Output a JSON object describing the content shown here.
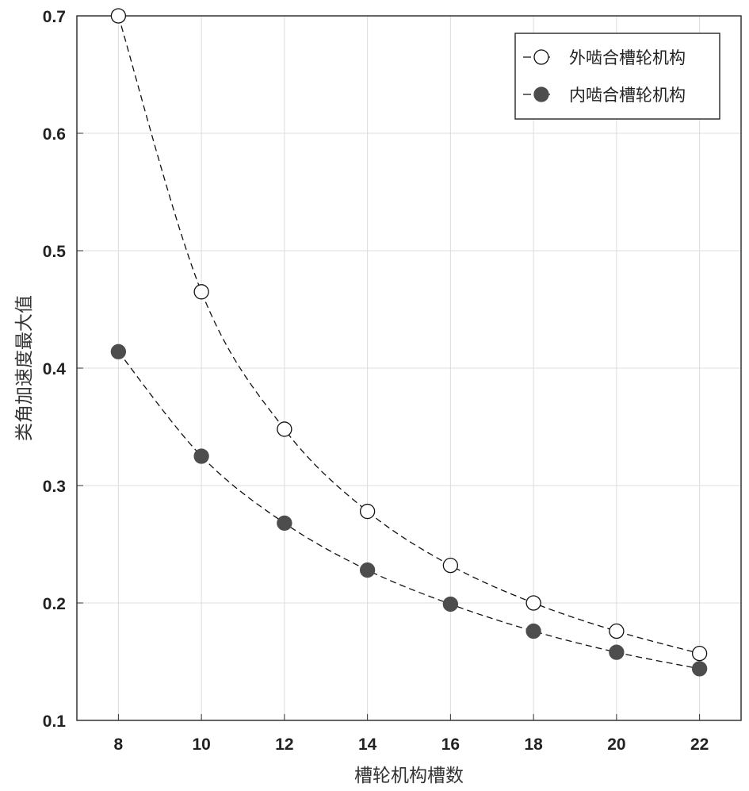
{
  "chart_data": {
    "type": "line",
    "title": "",
    "xlabel": "槽轮机构槽数",
    "ylabel": "类角加速度最大值",
    "xlim": [
      7,
      23
    ],
    "ylim": [
      0.1,
      0.7
    ],
    "xticks": [
      "8",
      "10",
      "12",
      "14",
      "16",
      "18",
      "20",
      "22"
    ],
    "yticks": [
      "0.1",
      "0.2",
      "0.3",
      "0.4",
      "0.5",
      "0.6",
      "0.7"
    ],
    "grid": true,
    "legend_position": "top-right",
    "x": [
      8,
      10,
      12,
      14,
      16,
      18,
      20,
      22
    ],
    "series": [
      {
        "name": "外啮合槽轮机构",
        "marker": "open-circle",
        "line": "dashed",
        "color": "#000000",
        "values": [
          0.7,
          0.465,
          0.348,
          0.278,
          0.232,
          0.2,
          0.176,
          0.157
        ]
      },
      {
        "name": "内啮合槽轮机构",
        "marker": "filled-circle",
        "line": "dashed",
        "color": "#4d4d4d",
        "values": [
          0.414,
          0.325,
          0.268,
          0.228,
          0.199,
          0.176,
          0.158,
          0.144
        ]
      }
    ]
  }
}
